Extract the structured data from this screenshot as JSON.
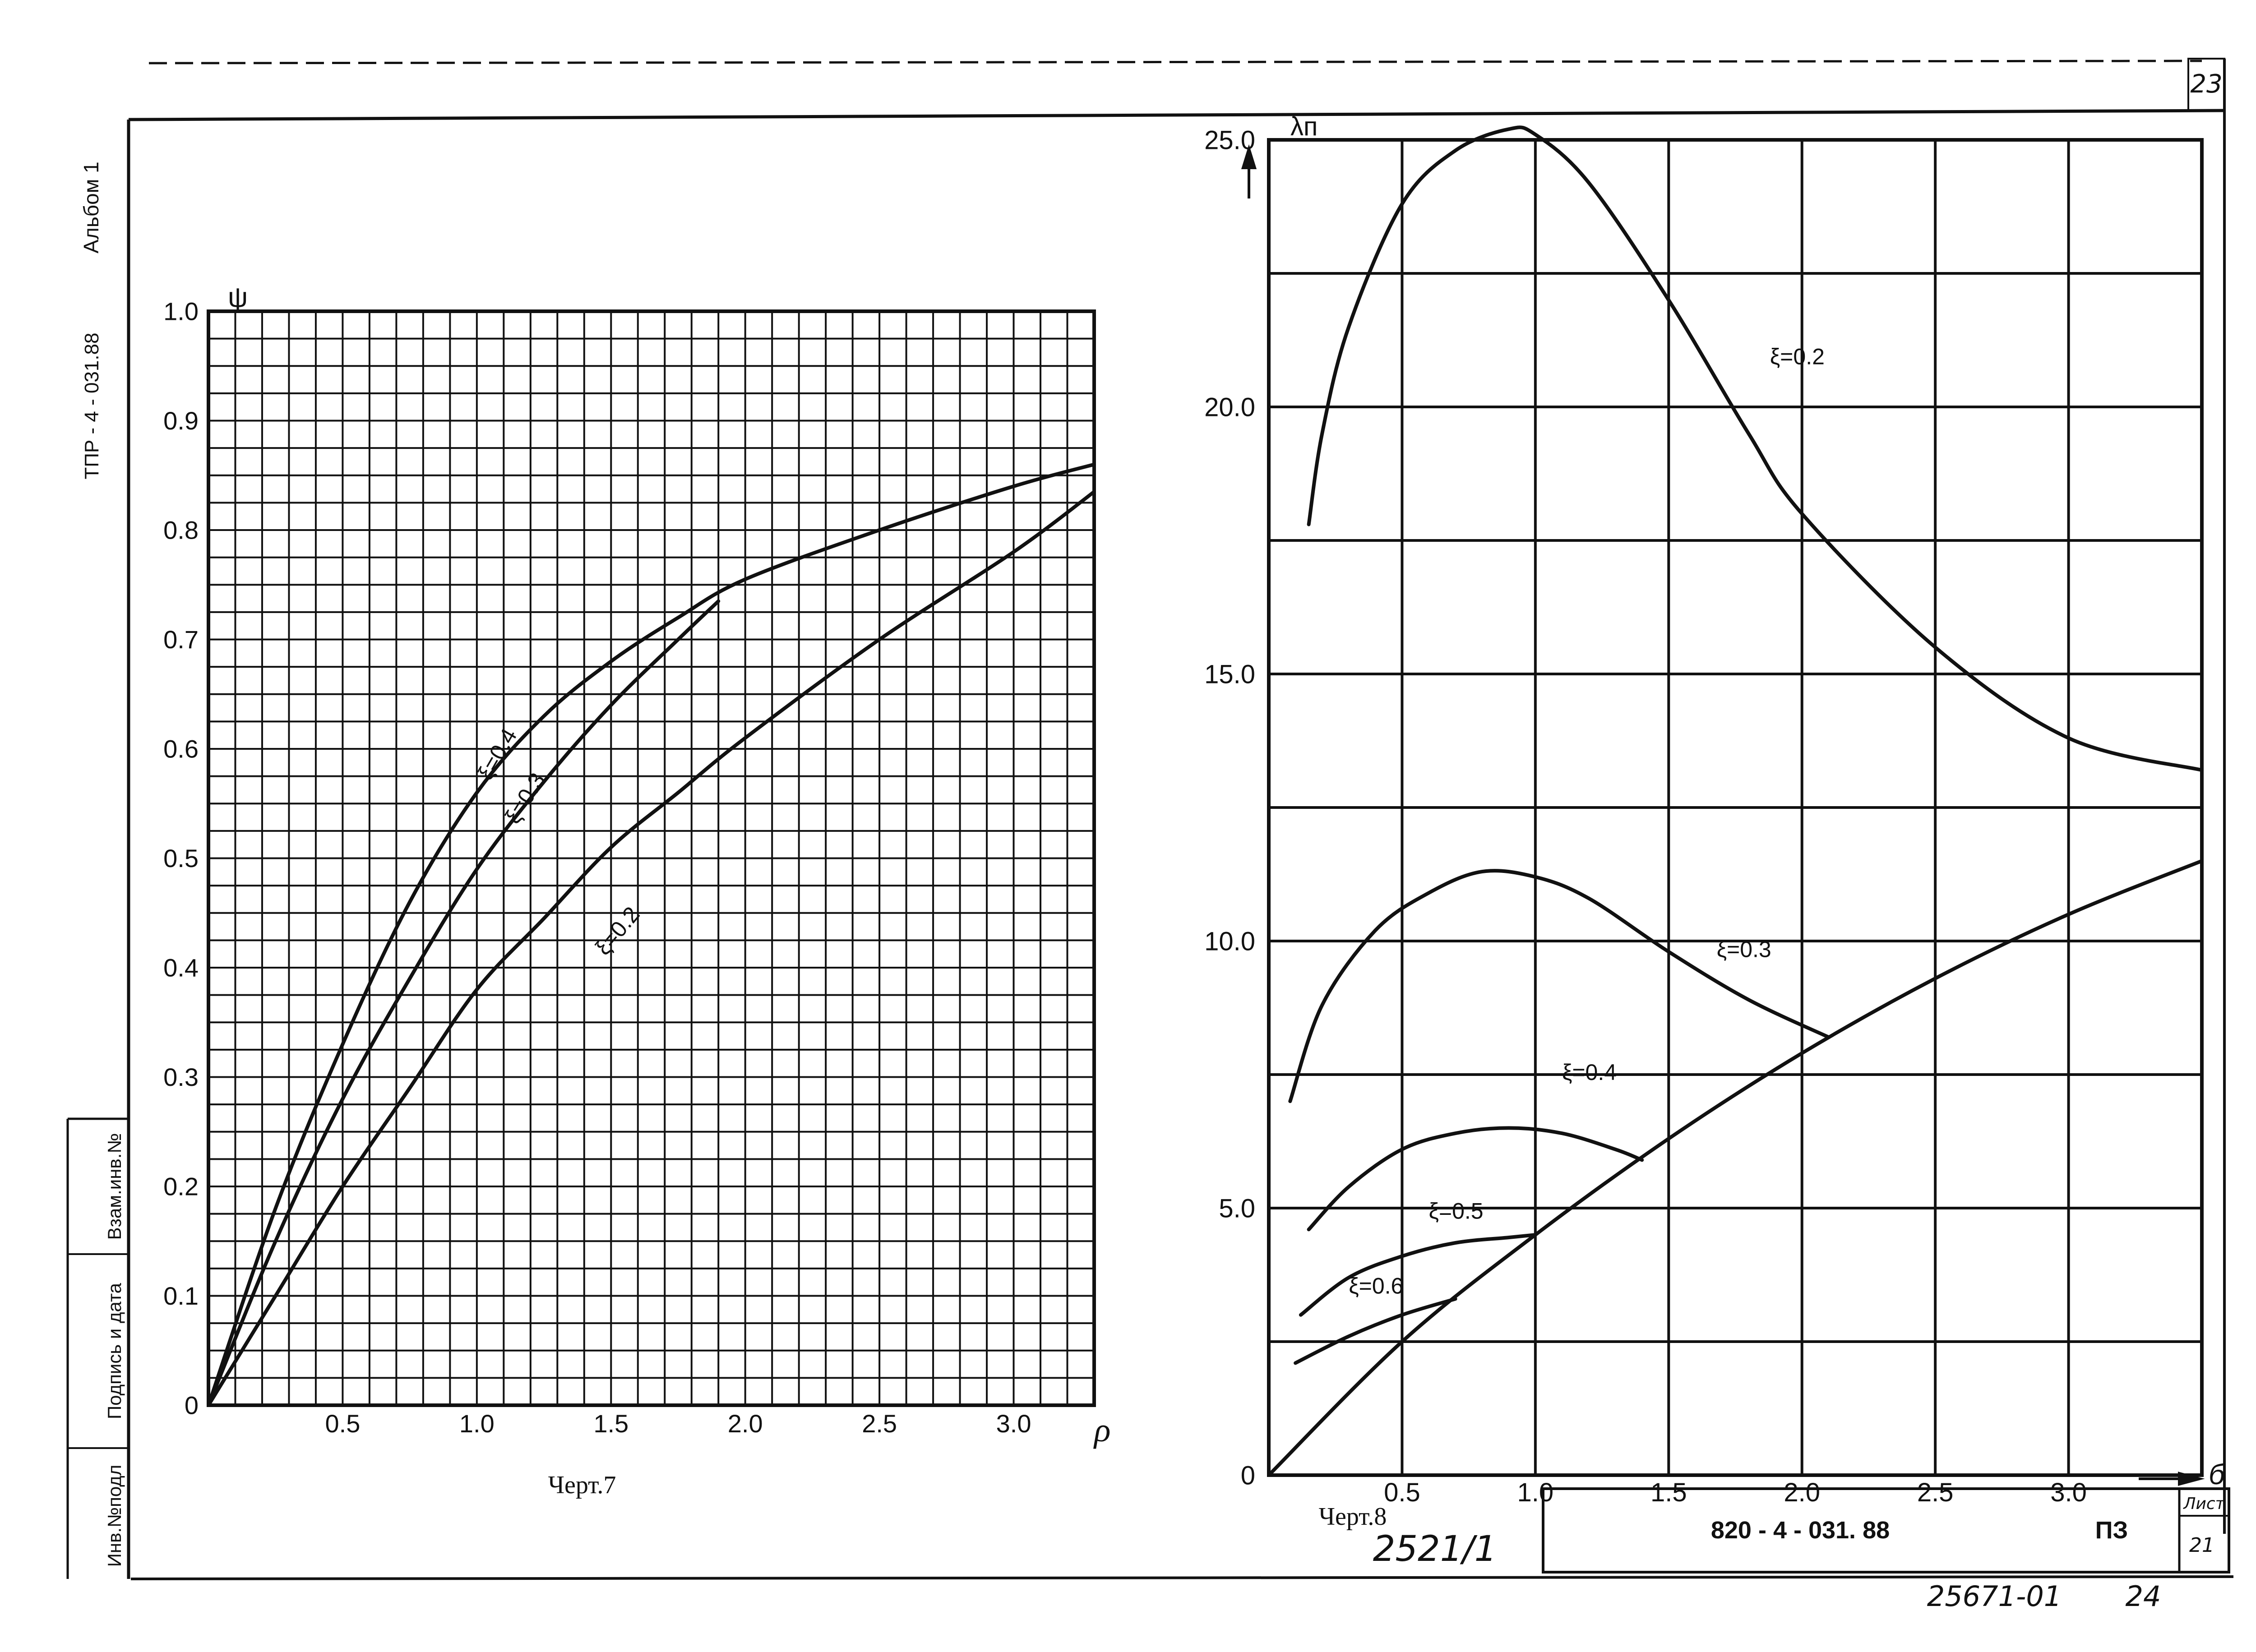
{
  "sheet": {
    "page_number": "23",
    "album_label": "Альбом 1",
    "doc_code_vertical": "ТПР - 4 - 031.88",
    "stamp_fields": [
      "Инв.№подл",
      "Подпись и дата",
      "Взам.инв.№"
    ],
    "doc_code": "820 - 4 - 031. 88",
    "doc_type": "ПЗ",
    "list_label": "Лист",
    "list_number": "21",
    "handwritten_1": "2521/1",
    "handwritten_2": "25671-01",
    "handwritten_3": "24"
  },
  "chart_data": [
    {
      "type": "line",
      "caption": "Черт.7",
      "y_symbol": "ψ",
      "x_symbol": "ρ",
      "xlim": [
        0,
        3.3
      ],
      "ylim": [
        0,
        1.0
      ],
      "x_ticks": [
        "0.5",
        "1.0",
        "1.5",
        "2.0",
        "2.5",
        "3.0"
      ],
      "y_ticks": [
        "0",
        "0.1",
        "0.2",
        "0.3",
        "0.4",
        "0.5",
        "0.6",
        "0.7",
        "0.8",
        "0.9",
        "1.0"
      ],
      "grid": true,
      "series": [
        {
          "name": "ξ=0.4",
          "x": [
            0,
            0.25,
            0.5,
            0.75,
            1.0,
            1.25,
            1.5,
            1.75,
            2.0,
            2.5,
            3.0,
            3.3
          ],
          "y": [
            0,
            0.18,
            0.33,
            0.46,
            0.56,
            0.63,
            0.68,
            0.72,
            0.755,
            0.8,
            0.84,
            0.86
          ]
        },
        {
          "name": "ξ=0.3",
          "x": [
            0,
            0.25,
            0.5,
            0.75,
            1.0,
            1.25,
            1.5,
            1.75,
            1.9
          ],
          "y": [
            0,
            0.15,
            0.28,
            0.39,
            0.49,
            0.57,
            0.64,
            0.7,
            0.735
          ]
        },
        {
          "name": "ξ=0.2",
          "x": [
            0,
            0.25,
            0.5,
            0.75,
            1.0,
            1.25,
            1.5,
            1.75,
            2.0,
            2.5,
            3.0,
            3.3
          ],
          "y": [
            0,
            0.1,
            0.2,
            0.29,
            0.38,
            0.445,
            0.51,
            0.56,
            0.61,
            0.7,
            0.78,
            0.835
          ]
        }
      ]
    },
    {
      "type": "line",
      "caption": "Черт.8",
      "y_symbol": "λп",
      "x_symbol": "б",
      "xlim": [
        0,
        3.5
      ],
      "ylim": [
        0,
        25.0
      ],
      "x_ticks": [
        "0.5",
        "1.0",
        "1.5",
        "2.0",
        "2.5",
        "3.0"
      ],
      "y_ticks": [
        "0",
        "5.0",
        "10.0",
        "15.0",
        "20.0",
        "25.0"
      ],
      "grid": true,
      "series": [
        {
          "name": "ξ=0.2",
          "x": [
            0.15,
            0.2,
            0.3,
            0.5,
            0.7,
            0.9,
            1.0,
            1.2,
            1.5,
            1.8,
            2.0,
            2.5,
            3.0,
            3.5
          ],
          "y": [
            17.8,
            19.5,
            21.5,
            23.8,
            24.8,
            25.2,
            25.1,
            24.2,
            22.0,
            19.5,
            18.0,
            15.5,
            13.8,
            13.2
          ]
        },
        {
          "name": "ξ=0.3",
          "x": [
            0.08,
            0.2,
            0.4,
            0.6,
            0.8,
            1.0,
            1.2,
            1.5,
            1.8,
            2.1
          ],
          "y": [
            7.0,
            8.8,
            10.2,
            10.9,
            11.3,
            11.2,
            10.8,
            9.8,
            8.9,
            8.2
          ]
        },
        {
          "name": "ξ=0.4",
          "x": [
            0.15,
            0.3,
            0.5,
            0.7,
            0.9,
            1.1,
            1.3,
            1.4
          ],
          "y": [
            4.6,
            5.4,
            6.1,
            6.4,
            6.5,
            6.4,
            6.1,
            5.9
          ]
        },
        {
          "name": "ξ=0.5",
          "x": [
            0.12,
            0.3,
            0.5,
            0.7,
            0.9,
            1.0
          ],
          "y": [
            3.0,
            3.7,
            4.1,
            4.35,
            4.45,
            4.5
          ]
        },
        {
          "name": "ξ=0.6",
          "x": [
            0.1,
            0.3,
            0.5,
            0.7
          ],
          "y": [
            2.1,
            2.6,
            3.0,
            3.3
          ]
        },
        {
          "name": "",
          "x": [
            0,
            0.5,
            1.0,
            1.5,
            2.0,
            2.5,
            3.0,
            3.5
          ],
          "y": [
            0,
            2.5,
            4.5,
            6.3,
            7.9,
            9.3,
            10.5,
            11.5
          ]
        }
      ]
    }
  ]
}
